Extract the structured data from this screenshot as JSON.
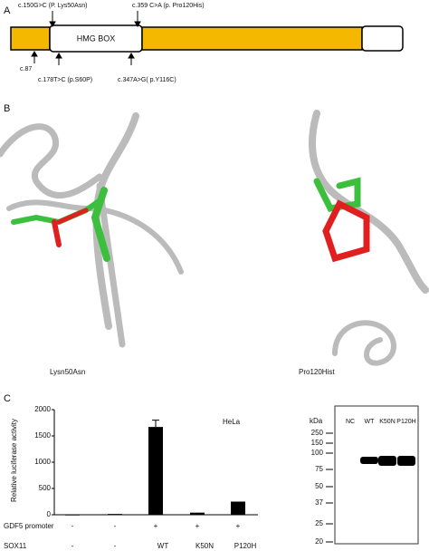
{
  "panel_labels": [
    "A",
    "B",
    "C"
  ],
  "schematic": {
    "domain": "HMG BOX",
    "top_labels": [
      "c.150G>C (P. Lys50Asn)",
      "c.359 C>A (p. Pro120His)"
    ],
    "bottom_labels": [
      "c.87",
      "c.178T>C (p.S60P)",
      "c.347A>G( p.Y116C)"
    ]
  },
  "structures": [
    "Lysn50Asn",
    "Pro120Hist"
  ],
  "chart_data": {
    "type": "bar",
    "y_label": "Relative luciferase activity",
    "annotation": "HeLa",
    "categories": [
      null,
      null,
      null,
      null,
      null
    ],
    "values": [
      5,
      15,
      1670,
      40,
      250
    ],
    "errors": [
      null,
      null,
      130,
      null,
      null
    ],
    "color": "#000000",
    "ylim": [
      0,
      2000
    ],
    "yticks": [
      0,
      500,
      1000,
      1500,
      2000
    ],
    "rows": [
      {
        "label": "GDF5 promoter",
        "cells": [
          "-",
          "-",
          "+",
          "+",
          "+"
        ]
      },
      {
        "label": "SOX11",
        "cells": [
          "-",
          "-",
          "WT",
          "K50N",
          "P120H"
        ]
      }
    ]
  },
  "blot": {
    "unit": "kDa",
    "lanes": [
      "NC",
      "WT",
      "K50N",
      "P120H"
    ],
    "markers": [
      250,
      150,
      100,
      75,
      50,
      37,
      25,
      20
    ]
  }
}
